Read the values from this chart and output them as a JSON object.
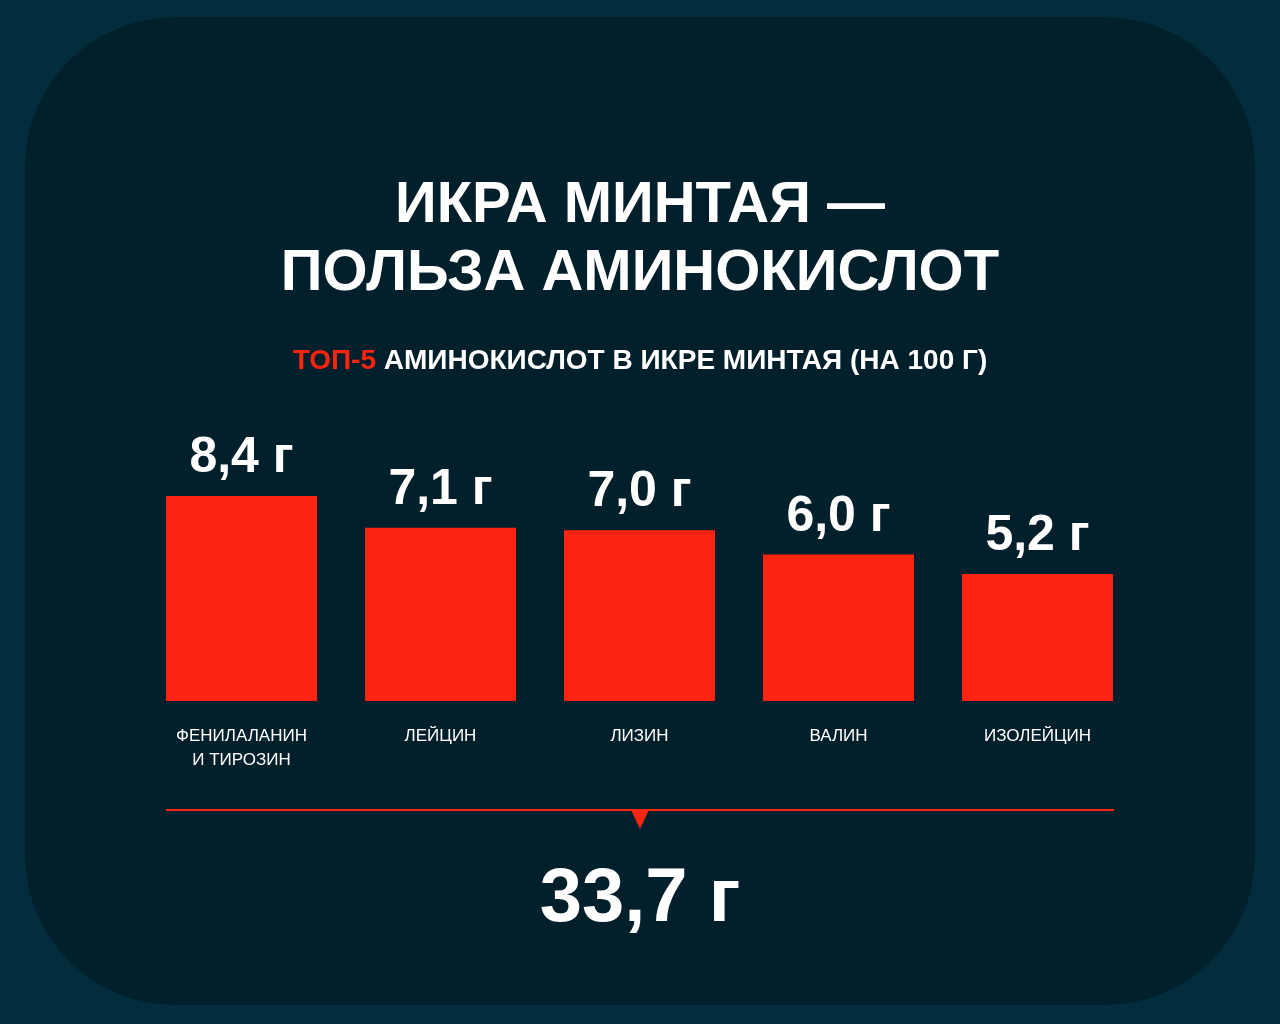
{
  "chart_data": {
    "type": "bar",
    "title": "ИКРА МИНТАЯ — ПОЛЬЗА АМИНОКИСЛОТ",
    "subtitle": "ТОП-5 АМИНОКИСЛОТ В ИКРЕ МИНТАЯ (НА 100 Г)",
    "categories": [
      "ФЕНИЛАЛАНИН И ТИРОЗИН",
      "ЛЕЙЦИН",
      "ЛИЗИН",
      "ВАЛИН",
      "ИЗОЛЕЙЦИН"
    ],
    "values": [
      8.4,
      7.1,
      7.0,
      6.0,
      5.2
    ],
    "value_labels": [
      "8,4 г",
      "7,1 г",
      "7,0 г",
      "6,0 г",
      "5,2 г"
    ],
    "color": "#fb2410",
    "annotations": [
      "33,7 г"
    ],
    "tick_labels": "x"
  }
}
